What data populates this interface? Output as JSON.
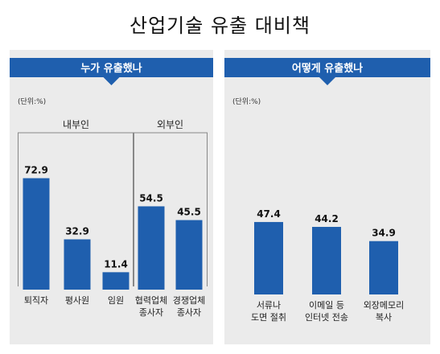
{
  "title": "산업기술 유출 대비책",
  "colors": {
    "bar": "#1f5fae",
    "ribbon": "#1f5fae",
    "panel_bg": "#ebebeb",
    "bracket": "#888888"
  },
  "chart_data": [
    {
      "type": "bar",
      "title": "누가 유출했나",
      "unit": "(단위:%)",
      "ylim": [
        0,
        80
      ],
      "groups": [
        {
          "label": "내부인",
          "members": [
            0,
            1,
            2
          ]
        },
        {
          "label": "외부인",
          "members": [
            3,
            4
          ]
        }
      ],
      "categories": [
        [
          "퇴직자"
        ],
        [
          "평사원"
        ],
        [
          "임원"
        ],
        [
          "협력업체",
          "종사자"
        ],
        [
          "경쟁업체",
          "종사자"
        ]
      ],
      "values": [
        72.9,
        32.9,
        11.4,
        54.5,
        45.5
      ],
      "value_labels": [
        "72.9",
        "32.9",
        "11.4",
        "54.5",
        "45.5"
      ]
    },
    {
      "type": "bar",
      "title": "어떻게 유출했나",
      "unit": "(단위:%)",
      "ylim": [
        0,
        80
      ],
      "categories": [
        [
          "서류나",
          "도면 절취"
        ],
        [
          "이메일 등",
          "인터넷 전송"
        ],
        [
          "외장메모리",
          "복사"
        ]
      ],
      "values": [
        47.4,
        44.2,
        34.9
      ],
      "value_labels": [
        "47.4",
        "44.2",
        "34.9"
      ]
    }
  ]
}
